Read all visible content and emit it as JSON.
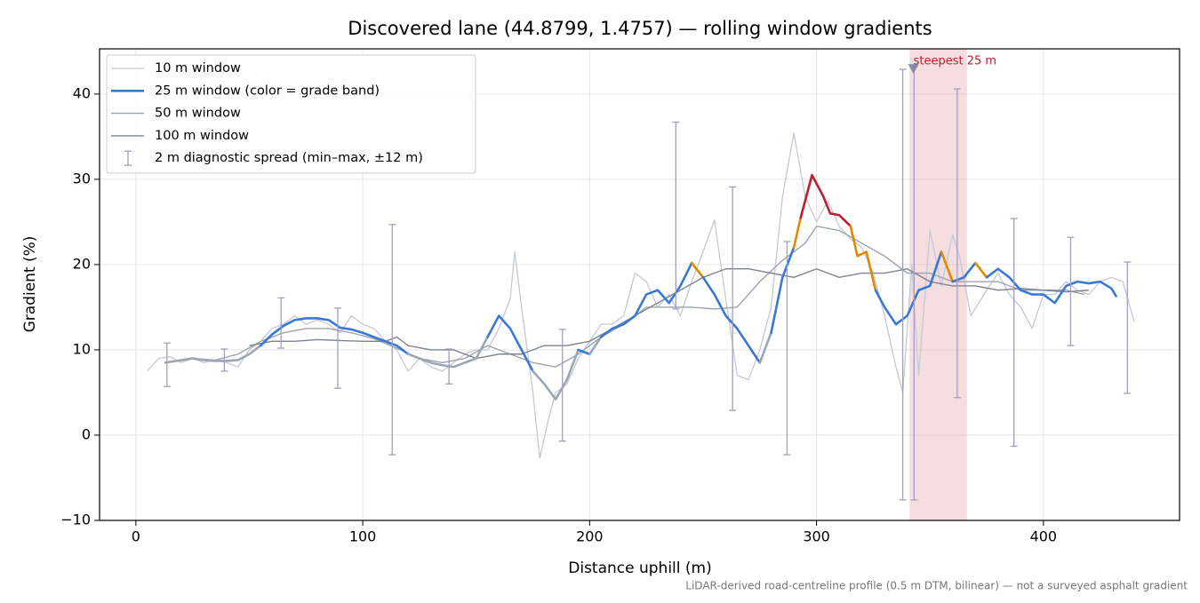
{
  "chart_data": {
    "type": "line",
    "title": "Discovered lane (44.8799, 1.4757) — rolling window gradients",
    "xlabel": "Distance uphill (m)",
    "ylabel": "Gradient (%)",
    "footnote": "LiDAR-derived road-centreline profile (0.5 m DTM, bilinear) — not a surveyed asphalt gradient",
    "xlim": [
      -16,
      460
    ],
    "ylim": [
      -10,
      45.3
    ],
    "xticks": [
      0,
      100,
      200,
      300,
      400
    ],
    "yticks": [
      {
        "value": -10,
        "label": "−10"
      },
      0,
      10,
      20,
      30,
      40
    ],
    "grid": true,
    "legend": "upper left",
    "bands": [
      {
        "max": 10,
        "color": "#9aa6b4"
      },
      {
        "max": 20,
        "color": "#3a78d6"
      },
      {
        "max": 25,
        "color": "#e08a00"
      },
      {
        "max": 100,
        "color": "#be1e2d"
      }
    ],
    "series": [
      {
        "name": "10 m window",
        "color": "#c3cad4",
        "width": 1.3,
        "x": [
          5,
          10,
          15,
          20,
          25,
          30,
          35,
          40,
          45,
          50,
          55,
          60,
          65,
          70,
          75,
          80,
          85,
          90,
          95,
          100,
          105,
          110,
          115,
          120,
          125,
          130,
          135,
          140,
          145,
          150,
          155,
          160,
          165,
          167,
          170,
          175,
          178,
          182,
          185,
          190,
          195,
          200,
          205,
          210,
          215,
          220,
          225,
          230,
          235,
          240,
          245,
          250,
          255,
          260,
          265,
          270,
          275,
          280,
          285,
          290,
          295,
          300,
          305,
          310,
          315,
          320,
          325,
          330,
          335,
          338,
          342,
          345,
          350,
          355,
          360,
          363,
          368,
          375,
          380,
          385,
          390,
          395,
          400,
          405,
          410,
          415,
          420,
          425,
          430,
          435,
          440
        ],
        "values": [
          7.5,
          9.0,
          9.2,
          8.5,
          9.0,
          8.5,
          8.8,
          8.5,
          8.0,
          10.0,
          11.0,
          12.5,
          13.0,
          14.0,
          13.0,
          13.5,
          13.0,
          12.0,
          14.0,
          13.0,
          12.5,
          11.0,
          10.0,
          7.5,
          9.0,
          8.0,
          7.5,
          8.5,
          9.5,
          10.0,
          10.0,
          12.5,
          16.0,
          21.5,
          15.0,
          5.0,
          -2.7,
          2.0,
          5.0,
          6.0,
          9.0,
          11.0,
          13.0,
          13.0,
          14.0,
          19.0,
          18.0,
          15.0,
          16.5,
          14.0,
          18.0,
          21.5,
          25.2,
          16.0,
          7.0,
          6.5,
          10.0,
          15.0,
          28.0,
          35.4,
          28.0,
          25.0,
          27.5,
          24.5,
          23.0,
          22.0,
          19.0,
          14.0,
          8.0,
          5.0,
          20.0,
          7.0,
          24.0,
          17.5,
          23.5,
          21.0,
          14.0,
          17.0,
          19.0,
          16.5,
          15.0,
          12.5,
          16.5,
          16.5,
          18.0,
          17.0,
          16.5,
          18.0,
          18.5,
          18.0,
          13.3
        ]
      },
      {
        "name": "25 m window (color = grade band)",
        "color": "#3a78d6",
        "width": 2.6,
        "banded": true,
        "x": [
          13,
          20,
          25,
          30,
          35,
          40,
          45,
          50,
          55,
          60,
          65,
          70,
          75,
          80,
          85,
          90,
          95,
          100,
          105,
          110,
          115,
          120,
          125,
          130,
          135,
          140,
          145,
          150,
          155,
          160,
          165,
          170,
          175,
          180,
          185,
          190,
          195,
          200,
          205,
          210,
          215,
          220,
          225,
          230,
          235,
          240,
          245,
          250,
          255,
          260,
          265,
          270,
          275,
          280,
          285,
          290,
          293,
          298,
          303,
          306,
          310,
          315,
          318,
          322,
          326,
          330,
          335,
          340,
          345,
          350,
          355,
          360,
          365,
          370,
          375,
          380,
          385,
          390,
          395,
          400,
          405,
          410,
          415,
          420,
          425,
          430,
          432
        ],
        "values": [
          8.5,
          8.8,
          9.0,
          8.8,
          8.7,
          8.7,
          8.8,
          9.5,
          10.5,
          11.8,
          12.8,
          13.5,
          13.7,
          13.7,
          13.5,
          12.6,
          12.4,
          12.0,
          11.5,
          11.0,
          10.5,
          9.5,
          9.0,
          8.5,
          8.2,
          8.0,
          8.5,
          9.0,
          11.5,
          14.0,
          12.5,
          10.0,
          7.5,
          6.0,
          4.2,
          6.5,
          10.0,
          9.5,
          11.5,
          12.5,
          13.0,
          14.0,
          16.5,
          17.0,
          15.5,
          17.5,
          20.2,
          18.5,
          16.5,
          14.0,
          12.5,
          10.5,
          8.5,
          12.0,
          18.5,
          22.0,
          25.5,
          30.5,
          28.0,
          26.0,
          25.8,
          24.5,
          21.0,
          21.5,
          17.0,
          15.0,
          13.0,
          14.0,
          17.0,
          17.5,
          21.5,
          18.0,
          18.5,
          20.2,
          18.5,
          19.5,
          18.5,
          17.0,
          16.5,
          16.5,
          15.5,
          17.5,
          18.0,
          17.8,
          18.0,
          17.2,
          16.3
        ]
      },
      {
        "name": "50 m window",
        "color": "#9ba3b2",
        "width": 1.4,
        "x": [
          25,
          35,
          45,
          55,
          65,
          75,
          85,
          95,
          105,
          115,
          125,
          135,
          145,
          155,
          165,
          175,
          185,
          195,
          205,
          215,
          225,
          235,
          245,
          255,
          265,
          275,
          285,
          295,
          300,
          310,
          320,
          330,
          340,
          350,
          360,
          370,
          380,
          390,
          400,
          410,
          418
        ],
        "values": [
          9.0,
          8.8,
          9.5,
          11.0,
          12.0,
          12.5,
          12.5,
          12.0,
          11.3,
          10.2,
          9.0,
          8.5,
          9.0,
          10.5,
          9.5,
          8.5,
          8.0,
          9.5,
          11.5,
          13.0,
          15.0,
          15.0,
          15.0,
          14.8,
          15.0,
          18.0,
          20.5,
          22.5,
          24.5,
          24.0,
          22.5,
          21.0,
          19.0,
          19.0,
          18.0,
          18.0,
          18.0,
          17.0,
          17.0,
          17.0,
          16.5
        ]
      },
      {
        "name": "100 m window",
        "color": "#7d8491",
        "width": 1.4,
        "x": [
          50,
          60,
          70,
          80,
          90,
          100,
          110,
          115,
          120,
          130,
          140,
          150,
          160,
          170,
          180,
          190,
          200,
          210,
          220,
          230,
          240,
          250,
          260,
          270,
          280,
          290,
          300,
          310,
          320,
          330,
          340,
          350,
          360,
          370,
          380,
          390,
          400,
          410,
          420
        ],
        "values": [
          10.5,
          11.0,
          11.0,
          11.2,
          11.1,
          11.0,
          11.0,
          11.5,
          10.5,
          10.0,
          10.0,
          9.0,
          9.5,
          9.5,
          10.5,
          10.5,
          11.0,
          12.5,
          14.0,
          15.5,
          17.0,
          18.5,
          19.5,
          19.5,
          19.0,
          18.5,
          19.5,
          18.5,
          19.0,
          19.0,
          19.5,
          18.0,
          17.5,
          17.5,
          17.0,
          17.2,
          17.0,
          16.8,
          17.0
        ]
      }
    ],
    "errorbars": {
      "name": "2 m diagnostic spread (min–max, ±12 m)",
      "color": "#a49dbf",
      "x": [
        13.7,
        39,
        64,
        89,
        113,
        138,
        188,
        238,
        263,
        287,
        338,
        343,
        362,
        387,
        412,
        437
      ],
      "low": [
        5.7,
        7.5,
        10.2,
        5.5,
        -2.3,
        6.0,
        -0.7,
        14.8,
        2.9,
        -2.3,
        -7.6,
        -7.6,
        4.4,
        -1.3,
        10.5,
        4.9
      ],
      "high": [
        10.8,
        10.1,
        16.1,
        14.9,
        24.7,
        10.1,
        12.4,
        36.7,
        29.1,
        22.7,
        42.9,
        43.2,
        40.6,
        25.4,
        23.2,
        20.3
      ]
    },
    "highlight": {
      "xlim": [
        341,
        366.3
      ],
      "color": "#e8b4ba"
    },
    "annotation": {
      "text": "steepest 25 m",
      "x": 342.7,
      "y": 43.0,
      "color": "#be1e2d",
      "marker_color": "#7a7f9a"
    }
  }
}
